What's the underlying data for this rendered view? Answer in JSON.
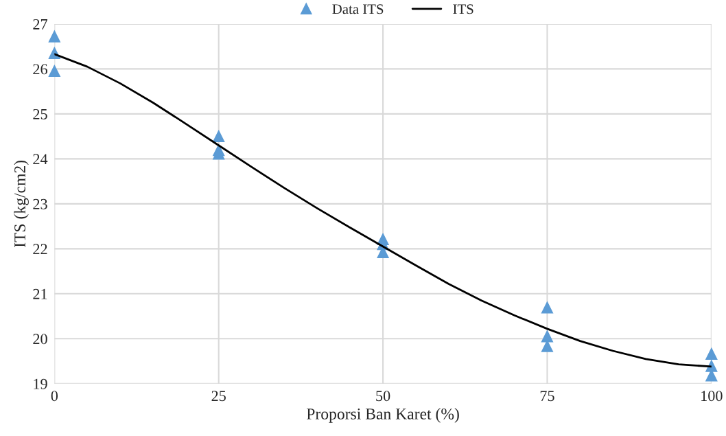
{
  "chart_data": {
    "type": "scatter",
    "xlabel": "Proporsi Ban Karet (%)",
    "ylabel": "ITS (kg/cm2)",
    "xlim": [
      0,
      100
    ],
    "xticks": [
      0,
      25,
      50,
      75,
      100
    ],
    "ylim": [
      19,
      27
    ],
    "yticks": [
      19,
      20,
      21,
      22,
      23,
      24,
      25,
      26,
      27
    ],
    "grid": true,
    "legend": "top",
    "series": [
      {
        "name": "Data ITS",
        "marker": "triangle",
        "color": "#5b9bd5",
        "x": [
          0,
          0,
          0,
          25,
          25,
          25,
          50,
          50,
          50,
          75,
          75,
          75,
          100,
          100,
          100
        ],
        "values": [
          26.73,
          26.36,
          25.96,
          24.51,
          24.2,
          24.12,
          22.22,
          22.11,
          21.93,
          20.7,
          20.06,
          19.84,
          19.67,
          19.4,
          19.19
        ]
      },
      {
        "name": "ITS",
        "type": "line",
        "line_style": "solid",
        "color": "#000000",
        "x": [
          0,
          5,
          10,
          15,
          20,
          25,
          30,
          35,
          40,
          45,
          50,
          55,
          60,
          65,
          70,
          75,
          80,
          85,
          90,
          95,
          100
        ],
        "values": [
          26.33,
          26.05,
          25.68,
          25.25,
          24.78,
          24.3,
          23.82,
          23.35,
          22.9,
          22.47,
          22.05,
          21.63,
          21.22,
          20.85,
          20.52,
          20.22,
          19.95,
          19.73,
          19.55,
          19.43,
          19.38
        ]
      }
    ]
  }
}
